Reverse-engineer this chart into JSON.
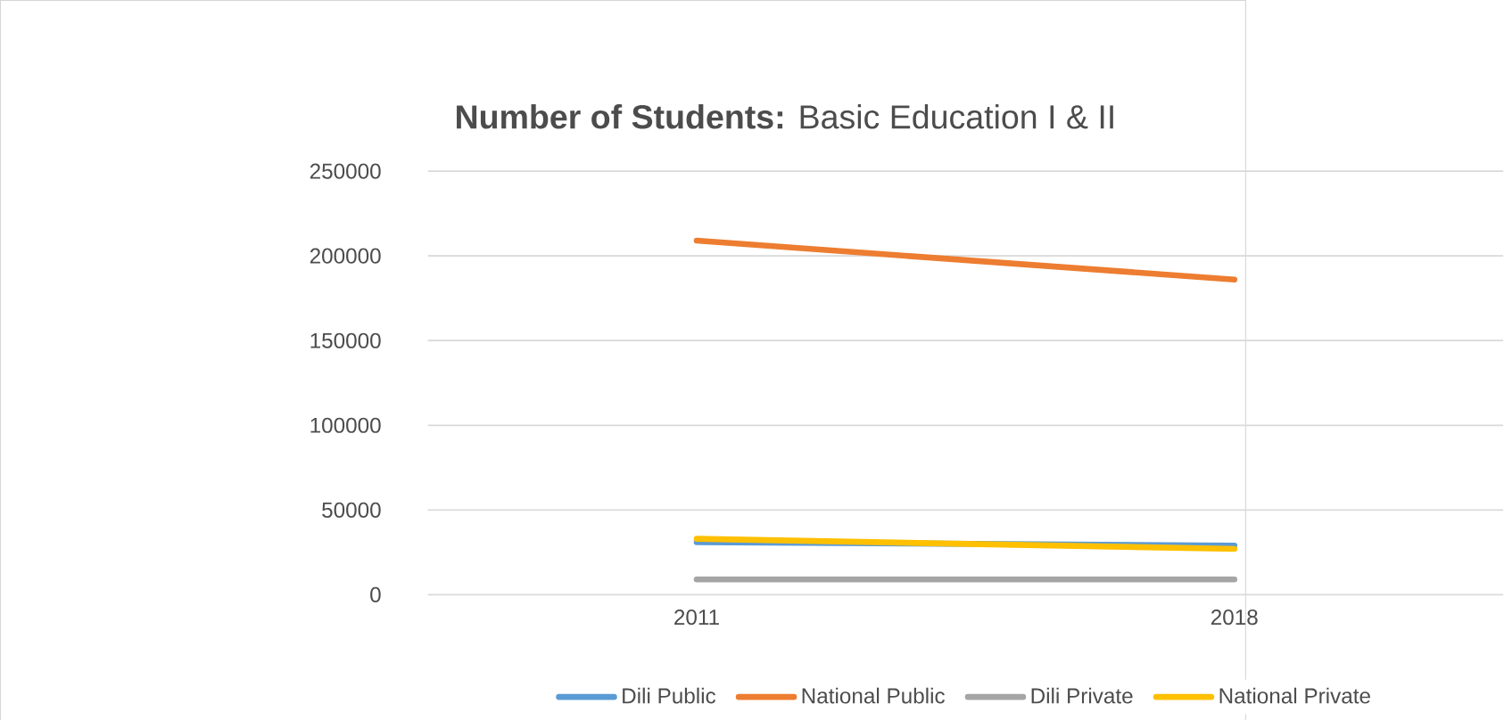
{
  "chart_data": {
    "type": "line",
    "title": "**Number of Students:** Basic Education I & II",
    "categories": [
      "2011",
      "2018"
    ],
    "series": [
      {
        "name": "Dili Public",
        "color": "#5b9bd5",
        "values": [
          31000,
          29000
        ]
      },
      {
        "name": "National Public",
        "color": "#ed7d31",
        "values": [
          209000,
          186000
        ]
      },
      {
        "name": "Dili Private",
        "color": "#a5a5a5",
        "values": [
          9000,
          9000
        ]
      },
      {
        "name": "National Private",
        "color": "#ffc000",
        "values": [
          33000,
          27000
        ]
      }
    ],
    "ylim": [
      0,
      250000
    ],
    "yticks": [
      0,
      50000,
      100000,
      150000,
      200000,
      250000
    ],
    "grid": "y",
    "legend": "bottom",
    "marker": "none",
    "line_style": "solid"
  }
}
